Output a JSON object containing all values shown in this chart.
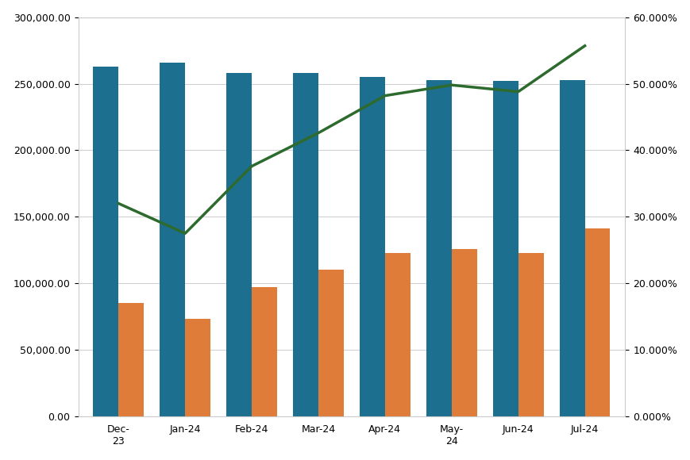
{
  "categories": [
    "Dec-\n23",
    "Jan-24",
    "Feb-24",
    "Mar-24",
    "Apr-24",
    "May-\n24",
    "Jun-24",
    "Jul-24"
  ],
  "blue_bars": [
    263000,
    266000,
    258000,
    258000,
    255000,
    253000,
    252000,
    253000
  ],
  "orange_bars": [
    85000,
    73000,
    97000,
    110000,
    123000,
    126000,
    123000,
    141000
  ],
  "green_line": [
    0.32,
    0.275,
    0.376,
    0.426,
    0.482,
    0.498,
    0.488,
    0.557
  ],
  "blue_color": "#1d6f8f",
  "orange_color": "#e07c3a",
  "green_color": "#2d6a2d",
  "ylim_left": [
    0,
    300000
  ],
  "ylim_right": [
    0.0,
    0.6
  ],
  "yticks_left": [
    0,
    50000,
    100000,
    150000,
    200000,
    250000,
    300000
  ],
  "yticks_right": [
    0.0,
    0.1,
    0.2,
    0.3,
    0.4,
    0.5,
    0.6
  ],
  "background_color": "#ffffff",
  "plot_bg_color": "#f9f9f9",
  "bar_width": 0.38,
  "figsize": [
    8.7,
    5.8
  ],
  "dpi": 100
}
